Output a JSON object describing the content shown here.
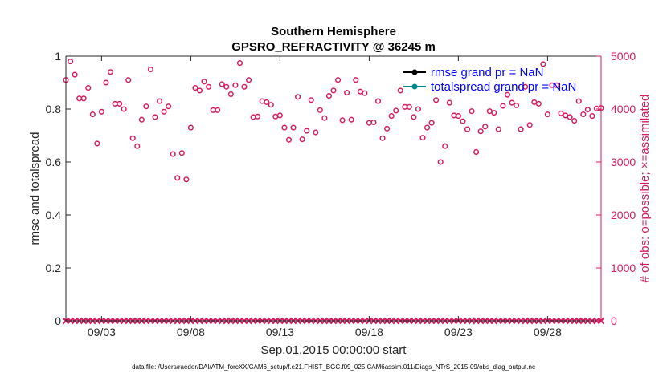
{
  "colors": {
    "obs": "#d81b60",
    "axis": "#262626",
    "legend_text": "#0000ff",
    "rmse_line": "#000000",
    "spread_line": "#008b8b"
  },
  "chart_data": {
    "type": "scatter",
    "title": "Southern Hemisphere",
    "subtitle": "GPSRO_REFRACTIVITY @ 36245 m",
    "xlabel": "Sep.01,2015 00:00:00 start",
    "ylabel_left": "rmse and totalspread",
    "ylabel_right": "# of obs: o=possible; ×=assimilated",
    "xlim": [
      1.0,
      31.0
    ],
    "ylim_left": [
      0,
      1
    ],
    "ylim_right": [
      0,
      5000
    ],
    "x_ticks": [
      {
        "value": 3,
        "label": "09/03"
      },
      {
        "value": 8,
        "label": "09/08"
      },
      {
        "value": 13,
        "label": "09/13"
      },
      {
        "value": 18,
        "label": "09/18"
      },
      {
        "value": 23,
        "label": "09/23"
      },
      {
        "value": 28,
        "label": "09/28"
      }
    ],
    "y_ticks_left": [
      {
        "value": 0,
        "label": "0"
      },
      {
        "value": 0.2,
        "label": "0.2"
      },
      {
        "value": 0.4,
        "label": "0.4"
      },
      {
        "value": 0.6,
        "label": "0.6"
      },
      {
        "value": 0.8,
        "label": "0.8"
      },
      {
        "value": 1,
        "label": "1"
      }
    ],
    "y_ticks_right": [
      {
        "value": 0,
        "label": "0"
      },
      {
        "value": 1000,
        "label": "1000"
      },
      {
        "value": 2000,
        "label": "2000"
      },
      {
        "value": 3000,
        "label": "3000"
      },
      {
        "value": 4000,
        "label": "4000"
      },
      {
        "value": 5000,
        "label": "5000"
      }
    ],
    "legend": [
      {
        "label": "rmse grand pr = NaN",
        "color": "#000000"
      },
      {
        "label": "totalspread grand pr = NaN",
        "color": "#008b8b"
      }
    ],
    "legend_position": "top-right",
    "series": [
      {
        "name": "obs possible",
        "marker": "circle",
        "axis": "right",
        "x": [
          1.0,
          1.25,
          1.5,
          1.75,
          2.0,
          2.25,
          2.5,
          2.75,
          3.0,
          3.25,
          3.5,
          3.75,
          4.0,
          4.25,
          4.5,
          4.75,
          5.0,
          5.25,
          5.5,
          5.75,
          6.0,
          6.25,
          6.5,
          6.75,
          7.0,
          7.25,
          7.5,
          7.75,
          8.0,
          8.25,
          8.5,
          8.75,
          9.0,
          9.25,
          9.5,
          9.75,
          10.0,
          10.25,
          10.5,
          10.75,
          11.0,
          11.25,
          11.5,
          11.75,
          12.0,
          12.25,
          12.5,
          12.75,
          13.0,
          13.25,
          13.5,
          13.75,
          14.0,
          14.25,
          14.5,
          14.75,
          15.0,
          15.25,
          15.5,
          15.75,
          16.0,
          16.25,
          16.5,
          16.75,
          17.0,
          17.25,
          17.5,
          17.75,
          18.0,
          18.25,
          18.5,
          18.75,
          19.0,
          19.25,
          19.5,
          19.75,
          20.0,
          20.25,
          20.5,
          20.75,
          21.0,
          21.25,
          21.5,
          21.75,
          22.0,
          22.25,
          22.5,
          22.75,
          23.0,
          23.25,
          23.5,
          23.75,
          24.0,
          24.25,
          24.5,
          24.75,
          25.0,
          25.25,
          25.5,
          25.75,
          26.0,
          26.25,
          26.5,
          26.75,
          27.0,
          27.25,
          27.5,
          27.75,
          28.0,
          28.25,
          28.5,
          28.75,
          29.0,
          29.25,
          29.5,
          29.75,
          30.0,
          30.25,
          30.5,
          30.75,
          31.0
        ],
        "y": [
          4550,
          4900,
          4650,
          4200,
          4200,
          4400,
          3900,
          3350,
          3950,
          4500,
          4700,
          4100,
          4100,
          4000,
          4550,
          3450,
          3300,
          3800,
          4050,
          4750,
          3850,
          4150,
          3950,
          4050,
          3150,
          2700,
          3170,
          2670,
          3650,
          4400,
          4350,
          4520,
          4420,
          3980,
          3980,
          4470,
          4420,
          4280,
          4450,
          4870,
          4420,
          4550,
          3850,
          3860,
          4150,
          4130,
          4080,
          3860,
          3880,
          3650,
          3420,
          3650,
          4230,
          3430,
          3590,
          4170,
          3560,
          3980,
          3830,
          4250,
          4350,
          4550,
          3790,
          4310,
          3800,
          4550,
          4330,
          4300,
          3740,
          3750,
          4150,
          3450,
          3630,
          3870,
          3970,
          4350,
          4040,
          4040,
          3850,
          4000,
          3460,
          3650,
          3740,
          4170,
          3000,
          3300,
          4120,
          3880,
          3870,
          3770,
          3620,
          3960,
          3190,
          3580,
          3670,
          3960,
          3930,
          3620,
          4060,
          4270,
          4120,
          4070,
          3620,
          4420,
          3700,
          4130,
          4100,
          4850,
          3900,
          4450,
          4450,
          3920,
          3880,
          3850,
          3780,
          4150,
          3900,
          3990,
          3870,
          4010,
          4020
        ]
      },
      {
        "name": "obs assimilated",
        "marker": "x",
        "axis": "right",
        "x_start": 1.0,
        "x_step": 0.25,
        "count": 121,
        "value": 0
      }
    ]
  },
  "footer": "data file: /Users/raeder/DAI/ATM_forcXX/CAM6_setup/f.e21.FHIST_BGC.f09_025.CAM6assim.011/Diags_NTrS_2015-09/obs_diag_output.nc"
}
